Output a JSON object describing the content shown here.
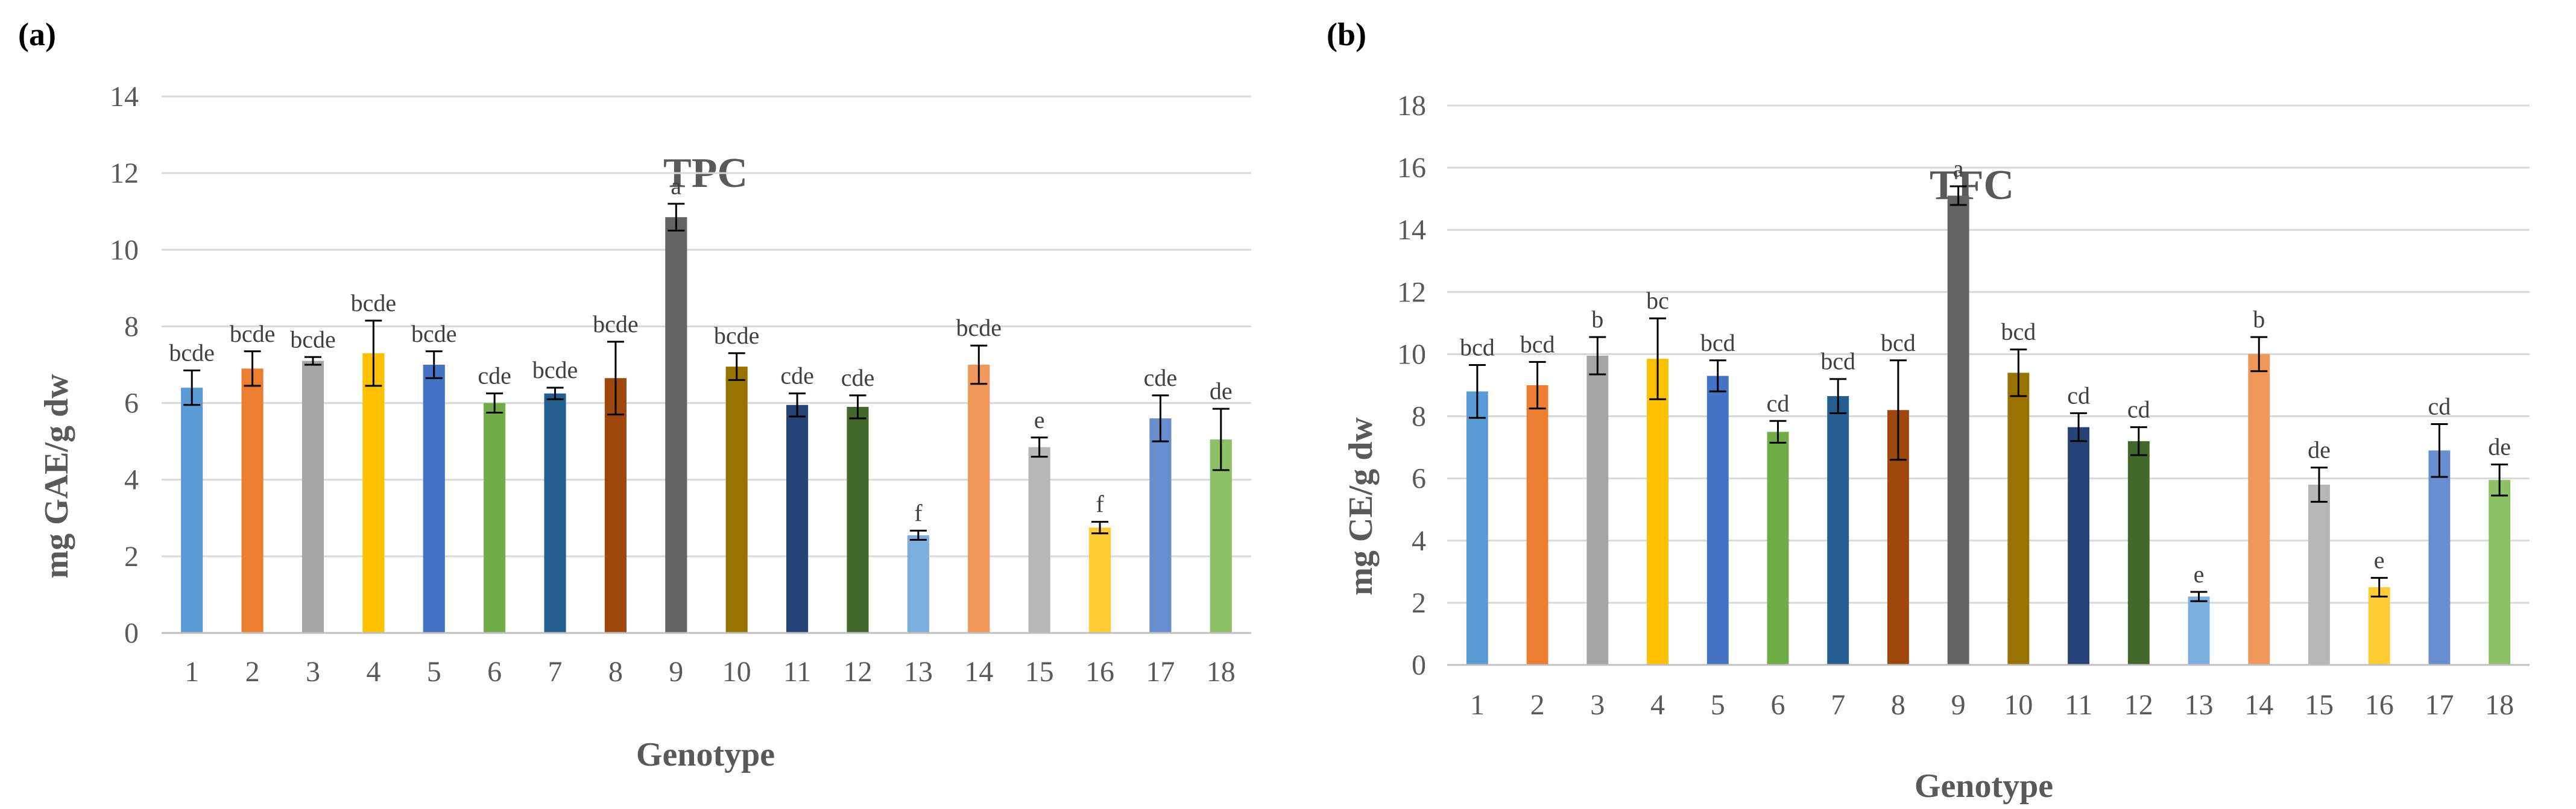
{
  "palette": [
    "#5b9bd5",
    "#ed7d31",
    "#a5a5a5",
    "#ffc000",
    "#4472c4",
    "#70ad47",
    "#255e91",
    "#9e480e",
    "#636363",
    "#997300",
    "#264478",
    "#43682b",
    "#7cafdd",
    "#f1975a",
    "#b7b7b7",
    "#ffcd33",
    "#698ed0",
    "#8cc168"
  ],
  "chart_data": [
    {
      "panel_label": "(a)",
      "type": "bar",
      "title": "TPC",
      "xlabel": "Genotype",
      "ylabel": "mg GAE/g dw",
      "ylim": [
        0,
        14
      ],
      "yticks": [
        0,
        2,
        4,
        6,
        8,
        10,
        12,
        14
      ],
      "grid": true,
      "categories": [
        "1",
        "2",
        "3",
        "4",
        "5",
        "6",
        "7",
        "8",
        "9",
        "10",
        "11",
        "12",
        "13",
        "14",
        "15",
        "16",
        "17",
        "18"
      ],
      "values": [
        6.4,
        6.9,
        7.1,
        7.3,
        7.0,
        6.0,
        6.25,
        6.65,
        10.85,
        6.95,
        5.95,
        5.9,
        2.55,
        7.0,
        4.85,
        2.75,
        5.6,
        5.05
      ],
      "errors": [
        0.45,
        0.45,
        0.1,
        0.85,
        0.35,
        0.25,
        0.15,
        0.95,
        0.35,
        0.35,
        0.3,
        0.3,
        0.12,
        0.5,
        0.25,
        0.15,
        0.6,
        0.8
      ],
      "labels": [
        "bcde",
        "bcde",
        "bcde",
        "bcde",
        "bcde",
        "cde",
        "bcde",
        "bcde",
        "a",
        "bcde",
        "cde",
        "cde",
        "f",
        "bcde",
        "e",
        "f",
        "cde",
        "de"
      ]
    },
    {
      "panel_label": "(b)",
      "type": "bar",
      "title": "TFC",
      "xlabel": "Genotype",
      "ylabel": "mg CE/g dw",
      "ylim": [
        0,
        18
      ],
      "yticks": [
        0,
        2,
        4,
        6,
        8,
        10,
        12,
        14,
        16,
        18
      ],
      "grid": true,
      "categories": [
        "1",
        "2",
        "3",
        "4",
        "5",
        "6",
        "7",
        "8",
        "9",
        "10",
        "11",
        "12",
        "13",
        "14",
        "15",
        "16",
        "17",
        "18"
      ],
      "values": [
        8.8,
        9.0,
        9.95,
        9.85,
        9.3,
        7.5,
        8.65,
        8.2,
        15.1,
        9.4,
        7.65,
        7.2,
        2.2,
        10.0,
        5.8,
        2.5,
        6.9,
        5.95
      ],
      "errors": [
        0.85,
        0.75,
        0.6,
        1.3,
        0.5,
        0.35,
        0.55,
        1.6,
        0.3,
        0.75,
        0.45,
        0.45,
        0.15,
        0.55,
        0.55,
        0.3,
        0.85,
        0.5
      ],
      "labels": [
        "bcd",
        "bcd",
        "b",
        "bc",
        "bcd",
        "cd",
        "bcd",
        "bcd",
        "a",
        "bcd",
        "cd",
        "cd",
        "e",
        "b",
        "de",
        "e",
        "cd",
        "de"
      ]
    }
  ]
}
